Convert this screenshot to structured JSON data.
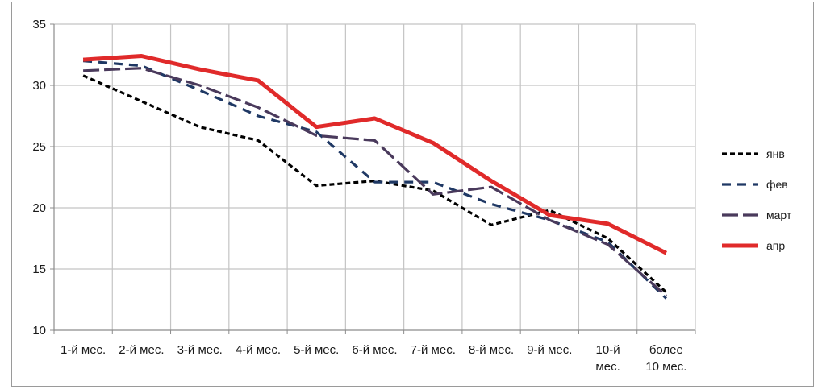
{
  "chart_data": {
    "type": "line",
    "title": "",
    "xlabel": "",
    "ylabel": "",
    "ylim": [
      10,
      35
    ],
    "yticks": [
      10,
      15,
      20,
      25,
      30,
      35
    ],
    "grid": true,
    "legend_position": "right",
    "categories": [
      [
        "1-й мес."
      ],
      [
        "2-й мес."
      ],
      [
        "3-й мес."
      ],
      [
        "4-й мес."
      ],
      [
        "5-й мес."
      ],
      [
        "6-й мес."
      ],
      [
        "7-й мес."
      ],
      [
        "8-й мес."
      ],
      [
        "9-й мес."
      ],
      [
        "10-й",
        "мес."
      ],
      [
        "более",
        "10 мес."
      ]
    ],
    "series": [
      {
        "name": "янв",
        "color": "#000000",
        "style": "dotted",
        "values": [
          30.8,
          28.7,
          26.6,
          25.5,
          21.8,
          22.2,
          21.4,
          18.6,
          19.8,
          17.5,
          13.1
        ]
      },
      {
        "name": "фев",
        "color": "#1f3864",
        "style": "dashed",
        "values": [
          32.0,
          31.6,
          29.6,
          27.5,
          26.2,
          22.1,
          22.1,
          20.3,
          19.0,
          17.2,
          12.6
        ]
      },
      {
        "name": "март",
        "color": "#4a3a5c",
        "style": "longdash",
        "values": [
          31.2,
          31.4,
          30.0,
          28.2,
          25.9,
          25.5,
          21.1,
          21.7,
          19.0,
          17.0,
          12.8
        ]
      },
      {
        "name": "апр",
        "color": "#e02a2a",
        "style": "solid",
        "values": [
          32.1,
          32.4,
          31.3,
          30.4,
          26.6,
          27.3,
          25.3,
          22.2,
          19.4,
          18.7,
          16.3
        ]
      }
    ]
  }
}
